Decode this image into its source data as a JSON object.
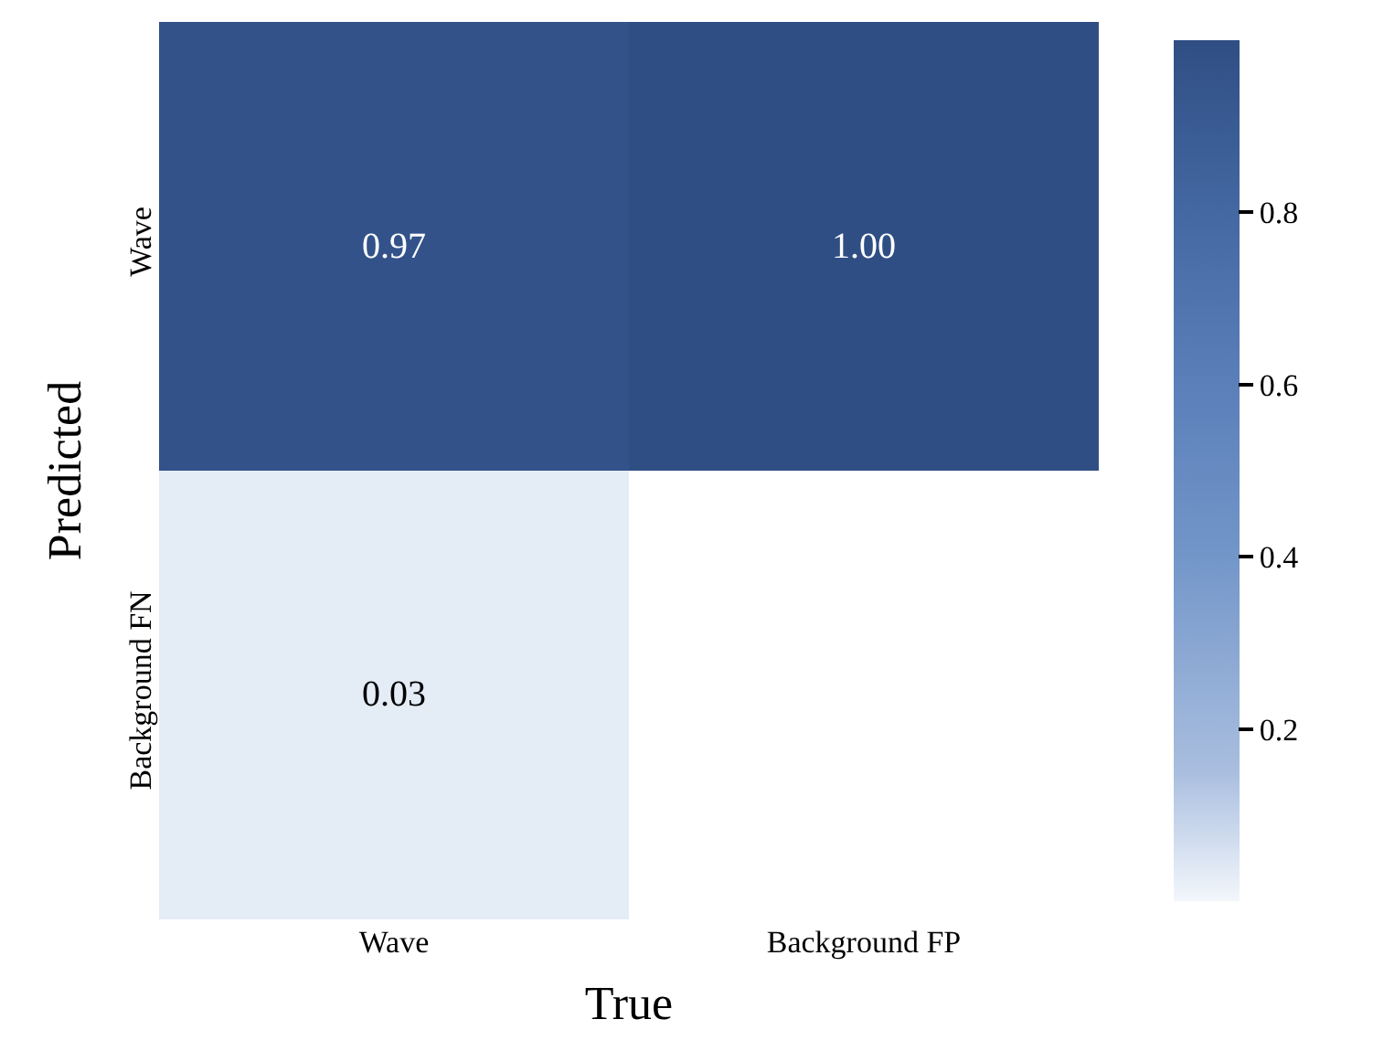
{
  "chart_data": {
    "type": "heatmap",
    "xlabel": "True",
    "ylabel": "Predicted",
    "categories": [
      "Wave",
      "Background FP"
    ],
    "y_categories": [
      "Wave",
      "Background FN"
    ],
    "cells": [
      [
        0.97,
        1.0
      ],
      [
        0.03,
        null
      ]
    ],
    "cell_labels": [
      [
        "0.97",
        "1.00"
      ],
      [
        "0.03",
        null
      ]
    ],
    "clim": [
      0,
      1
    ],
    "cticks": [
      0.2,
      0.4,
      0.6,
      0.8
    ]
  }
}
